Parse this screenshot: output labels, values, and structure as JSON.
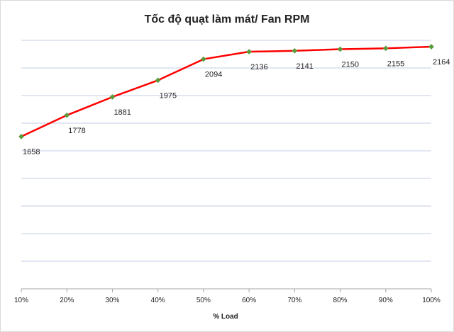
{
  "chart_data": {
    "type": "line",
    "title": "Tốc độ quạt làm mát/ Fan RPM",
    "xlabel": "% Load",
    "ylabel": "",
    "categories": [
      "10%",
      "20%",
      "30%",
      "40%",
      "50%",
      "60%",
      "70%",
      "80%",
      "90%",
      "100%"
    ],
    "series": [
      {
        "name": "Fan RPM",
        "values": [
          1658,
          1778,
          1881,
          1975,
          2094,
          2136,
          2141,
          2150,
          2155,
          2164
        ],
        "line_color": "#ff0000",
        "marker_color": "#5a9a3a"
      }
    ],
    "ylim": [
      800,
      2200
    ],
    "grid": true,
    "gridline_color": "#c5cde6",
    "data_labels": true
  }
}
